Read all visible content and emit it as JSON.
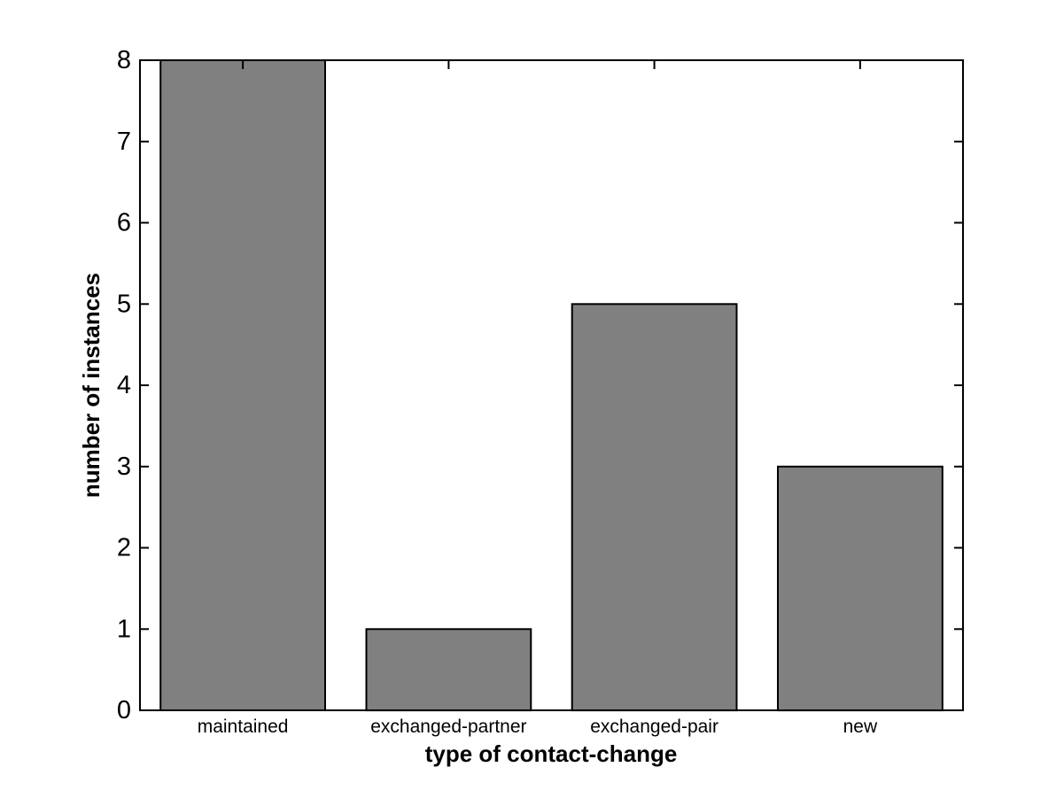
{
  "chart_data": {
    "type": "bar",
    "title": "",
    "categories": [
      "maintained",
      "exchanged-partner",
      "exchanged-pair",
      "new"
    ],
    "values": [
      8,
      1,
      5,
      3
    ],
    "xlabel": "type of contact-change",
    "ylabel": "number of instances",
    "ylim": [
      0,
      8
    ],
    "yticks": [
      0,
      1,
      2,
      3,
      4,
      5,
      6,
      7,
      8
    ],
    "bar_width_fraction": 0.8,
    "grid": false,
    "legend": null,
    "colors": {
      "bar_fill": "#808080",
      "bar_edge": "#000000",
      "axis": "#000000",
      "background": "#ffffff",
      "text": "#000000"
    }
  }
}
